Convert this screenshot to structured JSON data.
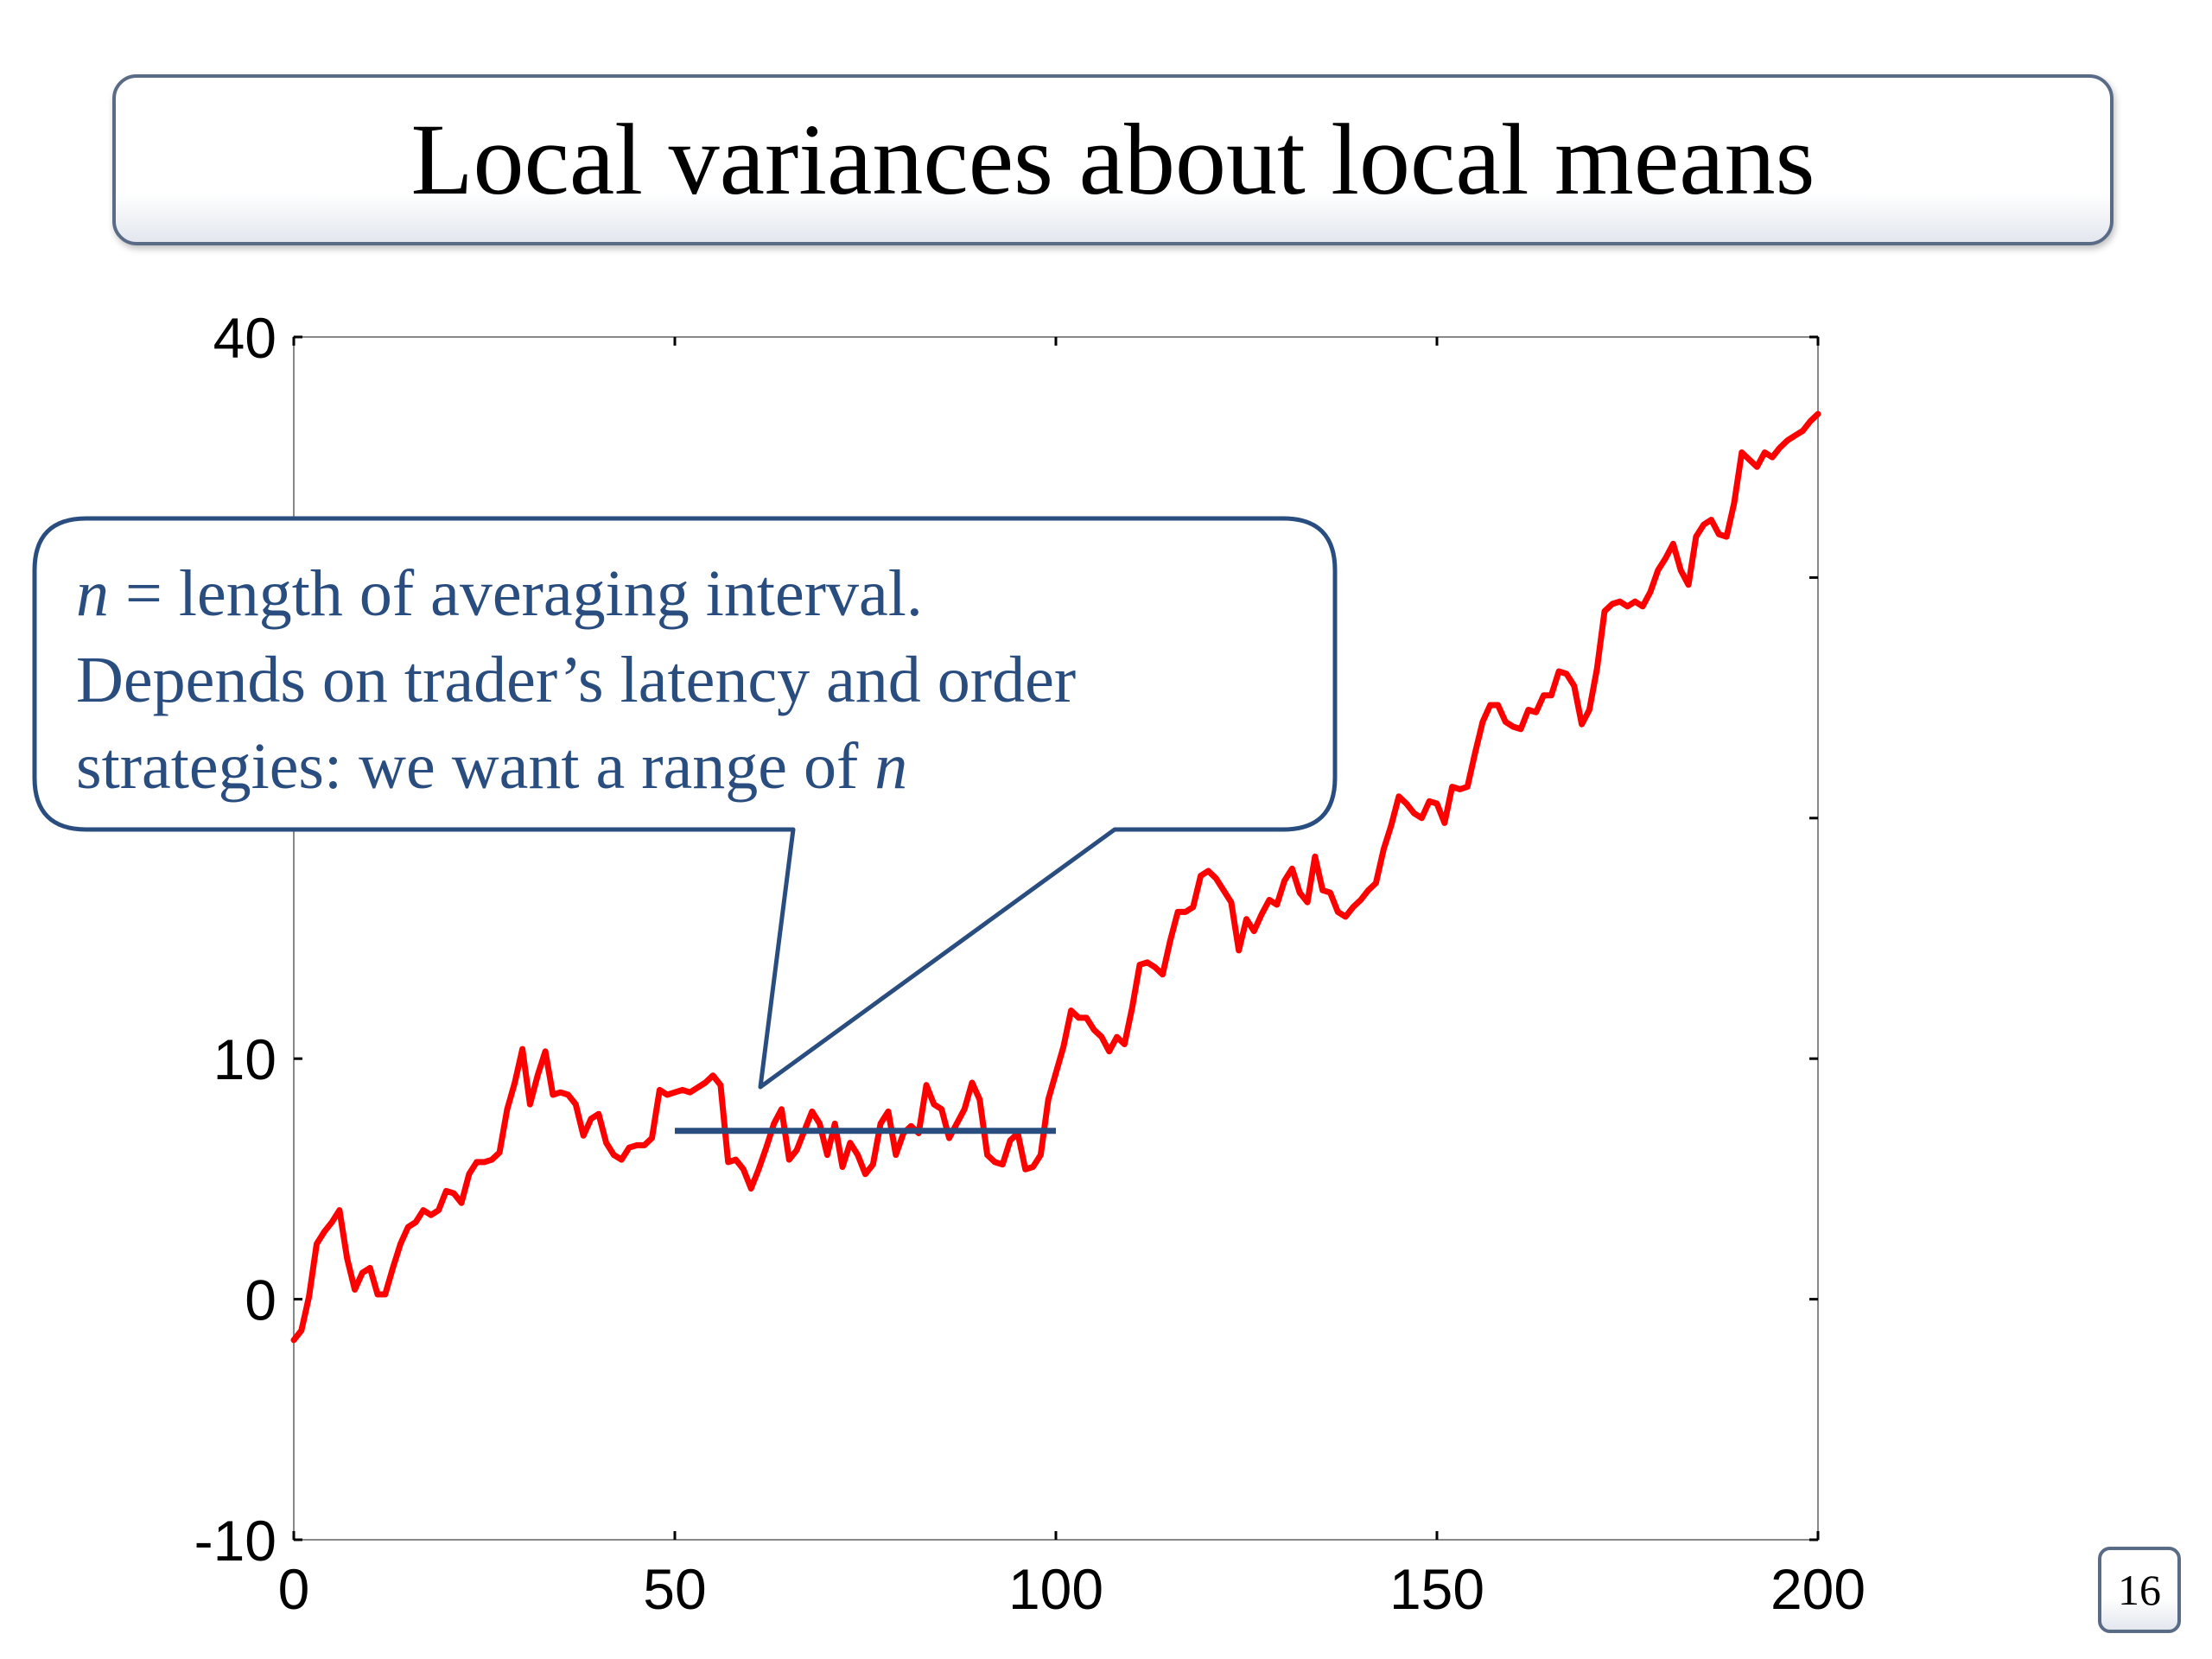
{
  "slide": {
    "title": "Local variances about local means",
    "page_number": "16"
  },
  "callout": {
    "line1_var": "n",
    "line1_rest": " = length of averaging interval.",
    "line2": "Depends on trader’s latency and order",
    "line3_rest": "strategies: we want a range of ",
    "line3_var": "n"
  },
  "colors": {
    "series": "#ff0000",
    "mean_line": "#2a4d80",
    "callout_border": "#2a4d80",
    "callout_text": "#2a4d80",
    "title_border": "#5a6b86"
  },
  "chart_data": {
    "type": "line",
    "title": "",
    "xlabel": "",
    "ylabel": "",
    "xlim": [
      0,
      200
    ],
    "ylim": [
      -10,
      40
    ],
    "xticks": [
      "0",
      "50",
      "100",
      "150",
      "200"
    ],
    "yticks": [
      "-10",
      "0",
      "10",
      "",
      "",
      "40"
    ],
    "grid": false,
    "series": [
      {
        "values": [
          -1.7,
          -1.3,
          0.1,
          2.3,
          2.8,
          3.2,
          3.7,
          1.7,
          0.4,
          1.1,
          1.3,
          0.2,
          0.2,
          1.3,
          2.3,
          3.0,
          3.2,
          3.7,
          3.5,
          3.7,
          4.5,
          4.4,
          4.0,
          5.2,
          5.7,
          5.7,
          5.8,
          6.1,
          7.9,
          9.0,
          10.4,
          8.1,
          9.3,
          10.3,
          8.5,
          8.6,
          8.5,
          8.1,
          6.8,
          7.5,
          7.7,
          6.5,
          6.0,
          5.8,
          6.3,
          6.4,
          6.4,
          6.7,
          8.7,
          8.5,
          8.6,
          8.7,
          8.6,
          8.8,
          9.0,
          9.3,
          8.9,
          5.7,
          5.8,
          5.4,
          4.6,
          5.4,
          6.3,
          7.3,
          7.9,
          5.8,
          6.2,
          7.0,
          7.8,
          7.3,
          6.0,
          7.3,
          5.5,
          6.5,
          6.0,
          5.2,
          5.6,
          7.3,
          7.8,
          6.0,
          6.9,
          7.2,
          6.9,
          8.9,
          8.1,
          7.9,
          6.7,
          7.3,
          7.9,
          9.0,
          8.3,
          6.0,
          5.7,
          5.6,
          6.6,
          6.9,
          5.4,
          5.5,
          6.0,
          8.3,
          9.4,
          10.5,
          12.0,
          11.7,
          11.7,
          11.2,
          10.9,
          10.3,
          10.9,
          10.6,
          12.1,
          13.9,
          14.0,
          13.8,
          13.5,
          14.9,
          16.1,
          16.1,
          16.3,
          17.6,
          17.8,
          17.5,
          17.0,
          16.5,
          14.5,
          15.8,
          15.3,
          16.0,
          16.6,
          16.4,
          17.4,
          17.9,
          16.9,
          16.5,
          18.4,
          17.0,
          16.9,
          16.1,
          15.9,
          16.3,
          16.6,
          17.0,
          17.3,
          18.7,
          19.7,
          20.9,
          20.6,
          20.2,
          20.0,
          20.7,
          20.6,
          19.8,
          21.3,
          21.2,
          21.3,
          22.7,
          24.0,
          24.7,
          24.7,
          24.0,
          23.8,
          23.7,
          24.5,
          24.4,
          25.1,
          25.1,
          26.1,
          26.0,
          25.5,
          23.9,
          24.5,
          26.2,
          28.6,
          28.9,
          29.0,
          28.8,
          29.0,
          28.8,
          29.4,
          30.3,
          30.8,
          31.4,
          30.3,
          29.7,
          31.7,
          32.2,
          32.4,
          31.8,
          31.7,
          33.1,
          35.2,
          34.9,
          34.6,
          35.2,
          35.0,
          35.4,
          35.7,
          35.9,
          36.1,
          36.5,
          36.8
        ]
      }
    ],
    "mean_line": {
      "x_start": 50,
      "x_end": 100,
      "y": 7.0
    }
  }
}
